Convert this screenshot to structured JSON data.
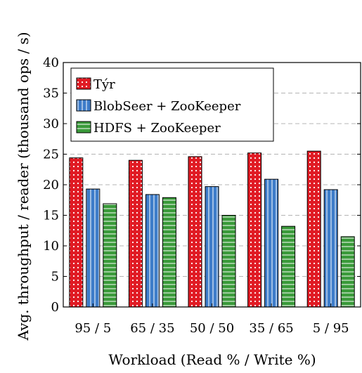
{
  "chart_data": {
    "type": "bar",
    "xlabel": "Workload (Read % / Write %)",
    "ylabel": "Avg. throughput / reader (thousand ops / s)",
    "ylim": [
      0,
      40
    ],
    "yticks": [
      0,
      5,
      10,
      15,
      20,
      25,
      30,
      35,
      40
    ],
    "grid": "horizontal dashed",
    "legend_position": "top-left",
    "categories": [
      "95 / 5",
      "65 / 35",
      "50 / 50",
      "35 / 65",
      "5 / 95"
    ],
    "series": [
      {
        "name": "Týr",
        "color": "#e01b24",
        "pattern": "dots",
        "values": [
          24.4,
          24.0,
          24.6,
          25.2,
          25.5
        ]
      },
      {
        "name": "BlobSeer + ZooKeeper",
        "color": "#3d7cc9",
        "pattern": "vertical-lines",
        "values": [
          19.3,
          18.4,
          19.7,
          20.9,
          19.2
        ]
      },
      {
        "name": "HDFS + ZooKeeper",
        "color": "#3a9a3a",
        "pattern": "horizontal-lines",
        "values": [
          16.9,
          17.9,
          15.0,
          13.2,
          11.5
        ]
      }
    ]
  }
}
